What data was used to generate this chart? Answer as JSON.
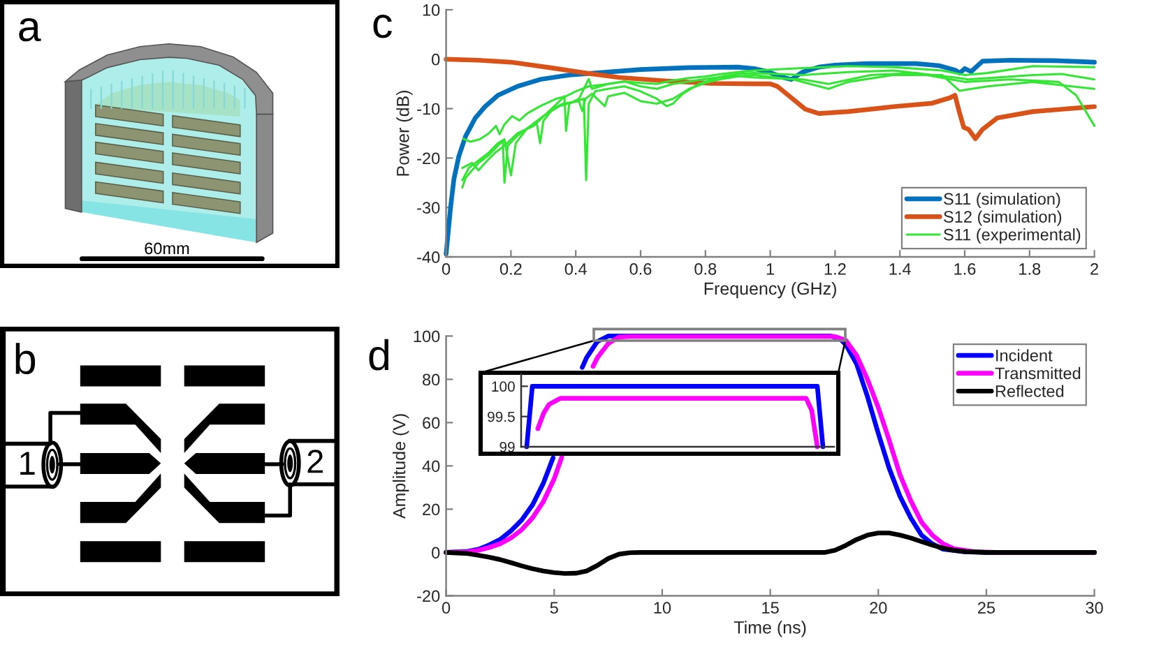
{
  "chart_data": [
    {
      "type": "other",
      "annotations": [
        "a",
        "60mm"
      ]
    },
    {
      "type": "other",
      "annotations": [
        "b",
        "1",
        "2"
      ]
    },
    {
      "type": "line",
      "annotations": [
        "c"
      ],
      "xlabel": "Frequency (GHz)",
      "ylabel": "Power (dB)",
      "xlim": [
        0,
        2
      ],
      "ylim": [
        -40,
        10
      ],
      "xticks": [
        0,
        0.2,
        0.4,
        0.6,
        0.8,
        1,
        1.2,
        1.4,
        1.6,
        1.8,
        2
      ],
      "yticks": [
        -40,
        -30,
        -20,
        -10,
        0,
        10
      ],
      "legend": "bottom right",
      "series": [
        {
          "name": "S11 (simulation)",
          "color": "#0072bd",
          "x": [
            0,
            0.006,
            0.014,
            0.024,
            0.039,
            0.06,
            0.09,
            0.12,
            0.16,
            0.22,
            0.29,
            0.38,
            0.46,
            0.6,
            0.75,
            0.9,
            0.95,
            0.99,
            1.04,
            1.065,
            1.1,
            1.15,
            1.2,
            1.3,
            1.45,
            1.52,
            1.57,
            1.585,
            1.6,
            1.62,
            1.655,
            1.74,
            1.88,
            2
          ],
          "values": [
            -39.4,
            -35.3,
            -29.8,
            -24.3,
            -19.7,
            -15.6,
            -11.9,
            -9.6,
            -7.3,
            -5.5,
            -4.1,
            -3.2,
            -2.8,
            -2.1,
            -1.7,
            -1.6,
            -1.9,
            -2.5,
            -3.7,
            -4.1,
            -2.6,
            -1.6,
            -1.2,
            -0.9,
            -0.9,
            -1.3,
            -2.2,
            -2.8,
            -1.9,
            -2.5,
            -0.4,
            -0.2,
            -0.3,
            -0.6
          ]
        },
        {
          "name": "S12 (simulation)",
          "color": "#d95319",
          "x": [
            0,
            0.1,
            0.2,
            0.32,
            0.43,
            0.535,
            0.68,
            0.82,
            0.97,
            1.0,
            1.022,
            1.065,
            1.108,
            1.15,
            1.24,
            1.38,
            1.5,
            1.555,
            1.57,
            1.583,
            1.597,
            1.612,
            1.633,
            1.655,
            1.7,
            1.81,
            2
          ],
          "values": [
            0,
            -0.2,
            -0.6,
            -1.7,
            -2.8,
            -3.7,
            -4.4,
            -4.9,
            -5.0,
            -5.0,
            -5.5,
            -7.8,
            -10.1,
            -11.0,
            -10.6,
            -9.6,
            -8.9,
            -7.8,
            -7.3,
            -10.6,
            -13.8,
            -14.2,
            -16.1,
            -14.2,
            -11.9,
            -10.6,
            -9.6
          ]
        },
        {
          "name": "S11 (experimental)",
          "color": "#33e633",
          "x": [
            0.053,
            0.075,
            0.104,
            0.132,
            0.154,
            0.165,
            0.18,
            0.204,
            0.226,
            0.25,
            0.29,
            0.34,
            0.37,
            0.4,
            0.44,
            0.5,
            0.55,
            0.6,
            0.65,
            0.7,
            0.75,
            0.8,
            0.85,
            0.9,
            0.95,
            1.1,
            1.24,
            1.38,
            1.53,
            1.6,
            1.67,
            1.81,
            2.0
          ],
          "values": [
            -16.1,
            -16.7,
            -16.2,
            -15.0,
            -13.5,
            -15.2,
            -13.2,
            -11.5,
            -12.4,
            -11.0,
            -9.5,
            -8.0,
            -7.5,
            -6.5,
            -5.5,
            -5.0,
            -4.5,
            -4.8,
            -5.0,
            -4.3,
            -3.8,
            -3.5,
            -3.0,
            -2.6,
            -2.3,
            -1.8,
            -1.4,
            -1.6,
            -2.3,
            -3.2,
            -2.8,
            -1.4,
            -1.6
          ]
        },
        {
          "color": "#33e633",
          "x": [
            0.05,
            0.06,
            0.08,
            0.1,
            0.13,
            0.16,
            0.175,
            0.18,
            0.19,
            0.22,
            0.26,
            0.3,
            0.35,
            0.4,
            0.425,
            0.432,
            0.44,
            0.46,
            0.5,
            0.55,
            0.6,
            0.65,
            0.68,
            0.7,
            0.73,
            0.78,
            0.85,
            0.9,
            0.95,
            1.1,
            1.24,
            1.38,
            1.57,
            1.61,
            1.7,
            1.81,
            1.9,
            2.0
          ],
          "values": [
            -26,
            -24,
            -22.5,
            -21,
            -19.5,
            -17.5,
            -16.5,
            -25,
            -17.5,
            -15.5,
            -13.5,
            -11.5,
            -9.5,
            -8.5,
            -8,
            -24.5,
            -9,
            -6.5,
            -6,
            -5.5,
            -6.5,
            -8,
            -9.5,
            -9,
            -7,
            -5,
            -3.5,
            -3,
            -2.8,
            -3.2,
            -2.6,
            -2.3,
            -3.7,
            -4.1,
            -3.7,
            -3.2,
            -3.0,
            -4.1
          ]
        },
        {
          "color": "#33e633",
          "x": [
            0.05,
            0.07,
            0.1,
            0.13,
            0.16,
            0.18,
            0.2,
            0.215,
            0.25,
            0.28,
            0.29,
            0.3,
            0.33,
            0.36,
            0.41,
            0.42,
            0.43,
            0.45,
            0.49,
            0.5,
            0.55,
            0.6,
            0.65,
            0.7,
            0.75,
            0.8,
            0.85,
            0.9,
            0.95,
            1.07,
            1.18,
            1.24,
            1.38,
            1.53,
            1.584,
            1.67,
            1.81,
            1.93,
            2.0
          ],
          "values": [
            -24.5,
            -22,
            -20.5,
            -19,
            -17,
            -16.2,
            -23.5,
            -17,
            -14,
            -13,
            -17,
            -12.5,
            -10,
            -9,
            -8.5,
            -10.5,
            -8,
            -7,
            -9.5,
            -7.5,
            -6.8,
            -8.5,
            -9,
            -8,
            -6,
            -4.8,
            -4,
            -3.5,
            -3.2,
            -4.1,
            -6.0,
            -4.6,
            -3.2,
            -3.2,
            -6.4,
            -5.5,
            -4.6,
            -5.5,
            -6.0
          ]
        },
        {
          "color": "#33e633",
          "x": [
            0.05,
            0.08,
            0.1,
            0.12,
            0.15,
            0.18,
            0.22,
            0.27,
            0.31,
            0.35,
            0.365,
            0.37,
            0.38,
            0.41,
            0.44,
            0.45,
            0.5,
            0.55,
            0.6,
            0.65,
            0.7,
            0.75,
            0.8,
            0.85,
            0.9,
            0.95,
            1.1,
            1.18,
            1.31,
            1.45,
            1.6,
            1.74,
            1.89,
            1.944,
            2.0
          ],
          "values": [
            -22,
            -21,
            -22.5,
            -21,
            -19,
            -17.5,
            -15,
            -13.5,
            -11,
            -8.5,
            -7.5,
            -14.5,
            -9,
            -8,
            -4,
            -6,
            -5,
            -4.5,
            -5.5,
            -6,
            -5,
            -4.5,
            -4,
            -3.6,
            -3.4,
            -3.7,
            -4.1,
            -5.0,
            -3.2,
            -2.8,
            -4.6,
            -4.1,
            -4.6,
            -7.3,
            -13.5
          ]
        }
      ]
    },
    {
      "type": "line",
      "annotations": [
        "d"
      ],
      "xlabel": "Time (ns)",
      "ylabel": "Amplitude (V)",
      "xlim": [
        0,
        30
      ],
      "ylim": [
        -20,
        100
      ],
      "xticks": [
        0,
        5,
        10,
        15,
        20,
        25,
        30
      ],
      "yticks": [
        -20,
        0,
        20,
        40,
        60,
        80,
        100
      ],
      "legend": "top right",
      "series": [
        {
          "name": "Incident",
          "color": "#0000ff",
          "x": [
            0,
            1,
            1.5,
            2,
            2.5,
            3,
            3.5,
            4,
            4.5,
            4.95,
            5.5,
            6,
            6.3,
            6.5,
            7,
            7.5,
            10,
            15,
            17.8,
            18.2,
            18.5,
            19,
            19.5,
            20,
            20.5,
            21,
            21.5,
            22,
            22.5,
            23,
            24,
            25,
            30
          ],
          "values": [
            0,
            0.5,
            1.5,
            3.5,
            6,
            10,
            15,
            22,
            32,
            43.7,
            null,
            null,
            85.5,
            90,
            97.5,
            100,
            100,
            100,
            100,
            99,
            96,
            87,
            72,
            55,
            39,
            26,
            16,
            8,
            4,
            1.5,
            0.3,
            0,
            0
          ]
        },
        {
          "name": "Transmitted",
          "color": "#ff00ff",
          "x": [
            0,
            1,
            1.5,
            2,
            2.5,
            3,
            3.5,
            4,
            4.5,
            5,
            5.35,
            5.5,
            6,
            6.5,
            6.8,
            7,
            7.5,
            8,
            8.5,
            12,
            18,
            18.5,
            19,
            19.5,
            20,
            20.5,
            21,
            21.5,
            22,
            22.5,
            23,
            23.5,
            24.5,
            25.5,
            30
          ],
          "values": [
            0,
            0.3,
            1,
            2.3,
            4,
            6.7,
            10.5,
            16,
            23.5,
            34,
            44,
            null,
            null,
            null,
            86,
            90,
            96.5,
            99.5,
            99.8,
            99.8,
            99.8,
            98,
            91,
            80,
            67,
            52,
            36,
            24,
            14,
            8,
            4,
            1.7,
            0.3,
            0,
            0
          ]
        },
        {
          "name": "Reflected",
          "color": "#000000",
          "x": [
            0,
            1,
            1.5,
            2,
            2.5,
            3,
            3.5,
            4,
            4.5,
            5,
            5.5,
            6,
            6.5,
            7,
            7.5,
            8,
            8.5,
            9,
            17.5,
            18,
            18.5,
            19,
            19.5,
            20,
            20.5,
            21,
            21.5,
            22,
            22.5,
            23,
            23.5,
            24,
            25,
            30
          ],
          "values": [
            0,
            -0.5,
            -1.3,
            -2.2,
            -3.3,
            -4.7,
            -6.2,
            -7.5,
            -8.6,
            -9.3,
            -9.7,
            -9.6,
            -8.6,
            -6,
            -2.8,
            -0.8,
            -0.1,
            0,
            0,
            1,
            3.3,
            6,
            8,
            9,
            9,
            8,
            6.7,
            5,
            3.4,
            2,
            1,
            0.4,
            0,
            0
          ]
        }
      ]
    },
    {
      "type": "line",
      "categories": [
        null,
        null,
        null,
        null,
        null,
        null,
        null,
        null,
        null,
        null,
        null,
        null,
        null,
        null,
        null,
        null,
        null,
        null,
        null,
        null,
        null,
        null,
        null,
        null,
        null,
        null,
        null,
        null,
        null,
        null,
        null,
        null,
        null,
        null,
        null,
        null,
        null,
        null,
        null,
        null,
        null,
        null,
        null,
        null,
        null,
        null,
        null,
        null,
        null,
        null,
        null,
        null,
        null,
        null,
        null,
        null,
        null
      ],
      "ylim": [
        99,
        100.2
      ],
      "yticks": [
        99,
        99.5,
        100
      ],
      "tick_labels": "y",
      "series": [
        {
          "color": "#0000ff",
          "values": [
            null,
            99,
            100,
            100,
            100,
            100,
            100,
            100,
            100,
            100,
            100,
            100,
            100,
            100,
            100,
            100,
            100,
            100,
            100,
            100,
            100,
            100,
            100,
            100,
            100,
            100,
            100,
            100,
            100,
            100,
            100,
            100,
            100,
            100,
            100,
            100,
            100,
            100,
            100,
            100,
            100,
            100,
            100,
            100,
            100,
            100,
            100,
            100,
            100,
            100,
            100,
            100,
            100,
            100,
            99,
            null,
            null
          ]
        },
        {
          "color": "#ff00ff",
          "values": [
            null,
            null,
            null,
            99.3,
            99.55,
            99.7,
            99.75,
            99.8,
            99.8,
            99.8,
            99.8,
            99.8,
            99.8,
            99.8,
            99.8,
            99.8,
            99.8,
            99.8,
            99.8,
            99.8,
            99.8,
            99.8,
            99.8,
            99.8,
            99.8,
            99.8,
            99.8,
            99.8,
            99.8,
            99.8,
            99.8,
            99.8,
            99.8,
            99.8,
            99.8,
            99.8,
            99.8,
            99.8,
            99.8,
            99.8,
            99.8,
            99.8,
            99.8,
            99.8,
            99.8,
            99.8,
            99.8,
            99.8,
            99.8,
            99.8,
            99.8,
            99.8,
            99.6,
            99,
            null,
            null,
            null
          ]
        }
      ]
    }
  ]
}
